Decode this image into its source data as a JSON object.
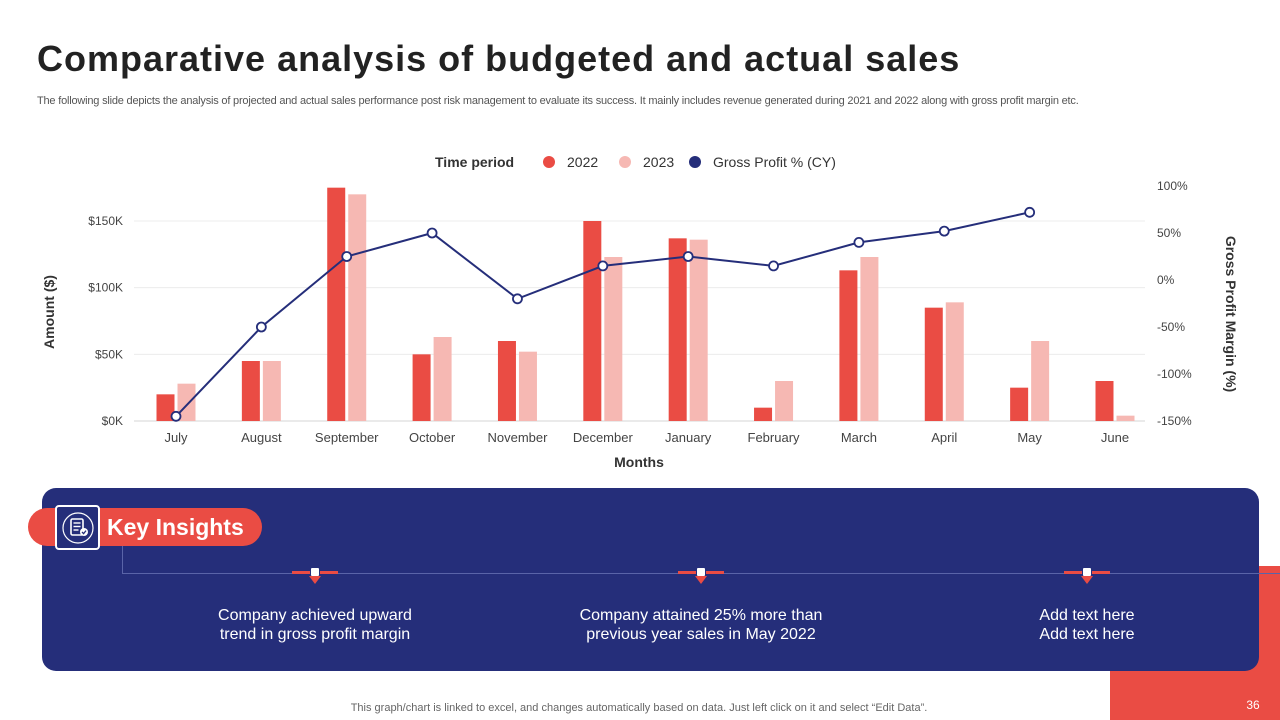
{
  "page": {
    "title": "Comparative analysis of budgeted and actual sales",
    "subtitle": "The following slide depicts the analysis of projected and actual sales performance post risk management to evaluate its success. It mainly includes revenue generated during 2021 and 2022 along with gross profit margin etc.",
    "footer_note": "This graph/chart is linked to excel,  and changes automatically based on data. Just left click on it and select “Edit Data”.",
    "page_number": "36"
  },
  "colors": {
    "series_2022": "#ea4c44",
    "series_2023": "#f6b8b3",
    "line": "#252e7a",
    "panel": "#252e7a",
    "accent_red": "#ea4c44"
  },
  "chart_data": {
    "type": "bar",
    "title": "",
    "legend_title": "Time period",
    "categories": [
      "July",
      "August",
      "September",
      "October",
      "November",
      "December",
      "January",
      "February",
      "March",
      "April",
      "May",
      "June"
    ],
    "series": [
      {
        "name": "2022",
        "kind": "bar",
        "axis": "left",
        "values": [
          20,
          45,
          175,
          50,
          60,
          150,
          137,
          10,
          113,
          85,
          25,
          30
        ]
      },
      {
        "name": "2023",
        "kind": "bar",
        "axis": "left",
        "values": [
          28,
          45,
          170,
          63,
          52,
          123,
          136,
          30,
          123,
          89,
          60,
          4
        ]
      },
      {
        "name": "Gross Profit % (CY)",
        "kind": "line",
        "axis": "right",
        "values": [
          -145,
          -50,
          25,
          50,
          -20,
          15,
          25,
          15,
          40,
          52,
          72,
          null
        ]
      }
    ],
    "xlabel": "Months",
    "ylabel": "Amount ($)",
    "y2label": "Gross Profit Margin (%)",
    "ylim": [
      0,
      175
    ],
    "y2lim": [
      -150,
      100
    ],
    "yticks": [
      0,
      50,
      100,
      150
    ],
    "ytick_labels": [
      "$0K",
      "$50K",
      "$100K",
      "$150K"
    ],
    "y2ticks": [
      -150,
      -100,
      -50,
      0,
      50,
      100
    ],
    "y2tick_labels": [
      "-150%",
      "-100%",
      "-50%",
      "0%",
      "50%",
      "100%"
    ],
    "grid": true,
    "legend_position": "top-center"
  },
  "insights": {
    "title": "Key Insights",
    "icon": "document-list-icon",
    "items": [
      {
        "line1": "Company achieved upward",
        "line2": "trend in gross profit margin"
      },
      {
        "line1": "Company attained 25% more than",
        "line2": "previous year sales in May 2022"
      },
      {
        "line1": "Add text here",
        "line2": "Add text here"
      }
    ]
  }
}
